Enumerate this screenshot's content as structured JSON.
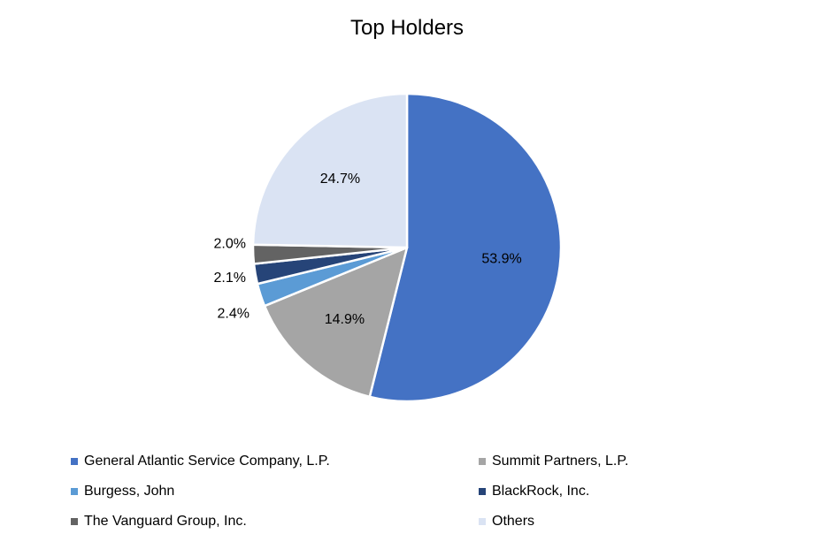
{
  "chart_data": {
    "type": "pie",
    "title": "Top Holders",
    "categories": [
      "General Atlantic Service Company, L.P.",
      "Summit Partners, L.P.",
      "Burgess, John",
      "BlackRock, Inc.",
      "The Vanguard Group, Inc.",
      "Others"
    ],
    "values": [
      53.9,
      14.9,
      2.4,
      2.1,
      2.0,
      24.7
    ],
    "labels": [
      "53.9%",
      "14.9%",
      "2.4%",
      "2.1%",
      "2.0%",
      "24.7%"
    ],
    "colors": [
      "#4472C4",
      "#A5A5A5",
      "#5B9BD5",
      "#264478",
      "#636363",
      "#DAE3F3"
    ],
    "legend_position": "bottom",
    "start_angle": "12 o'clock",
    "direction": "clockwise"
  }
}
